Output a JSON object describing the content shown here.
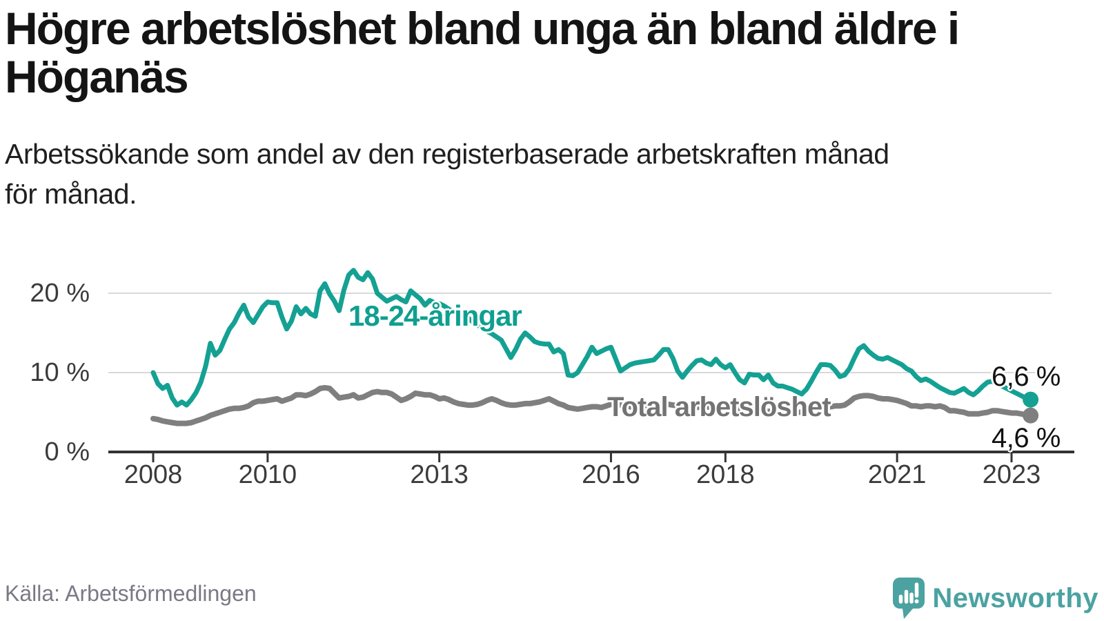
{
  "header": {
    "title_lines": [
      "Högre arbetslöshet bland unga än bland äldre i",
      "Höganäs"
    ],
    "subtitle_lines": [
      "Arbetssökande som andel av den registerbaserade arbetskraften månad",
      "för månad."
    ]
  },
  "footer": {
    "source": "Källa: Arbetsförmedlingen",
    "brand": "Newsworthy",
    "brand_color": "#4ba2a1",
    "logo_icon": "speech-bubble-bar-chart"
  },
  "chart_data": {
    "type": "line",
    "title": "Högre arbetslöshet bland unga än bland äldre i Höganäs",
    "subtitle": "Arbetssökande som andel av den registerbaserade arbetskraften månad för månad.",
    "x_unit": "month",
    "x_range": [
      "2008-01",
      "2023-05"
    ],
    "ylim": [
      0,
      23
    ],
    "grid": "horizontal",
    "grid_color": "#d9d9d9",
    "axis_color": "#333333",
    "x_ticks": [
      {
        "label": "2008",
        "year": 2008
      },
      {
        "label": "2010",
        "year": 2010
      },
      {
        "label": "2013",
        "year": 2013
      },
      {
        "label": "2016",
        "year": 2016
      },
      {
        "label": "2018",
        "year": 2018
      },
      {
        "label": "2021",
        "year": 2021
      },
      {
        "label": "2023",
        "year": 2023
      }
    ],
    "y_ticks": [
      {
        "label": "20 %",
        "value": 20
      },
      {
        "label": "10 %",
        "value": 10
      },
      {
        "label": "0 %",
        "value": 0
      }
    ],
    "series": [
      {
        "name": "18-24-åringar",
        "slug": "18-24",
        "color": "#14a193",
        "label": "18-24-åringar",
        "end_label": "6,6 %",
        "end_value": 6.6,
        "values": [
          10.0,
          8.6,
          8.0,
          8.4,
          6.8,
          5.9,
          6.3,
          5.9,
          6.6,
          7.5,
          8.8,
          10.8,
          13.7,
          12.2,
          12.8,
          14.2,
          15.5,
          16.3,
          17.5,
          18.5,
          17.0,
          16.3,
          17.3,
          18.3,
          18.9,
          18.8,
          18.8,
          17.0,
          15.5,
          16.5,
          18.3,
          17.4,
          18.1,
          17.4,
          17.1,
          20.3,
          21.2,
          19.9,
          19.0,
          17.8,
          20.4,
          22.3,
          22.9,
          22.0,
          21.7,
          22.6,
          21.8,
          20.0,
          19.5,
          19.0,
          19.3,
          19.6,
          19.2,
          18.9,
          20.3,
          19.8,
          19.3,
          18.5,
          19.1,
          18.8,
          18.7,
          18.4,
          18.0,
          17.6,
          17.2,
          16.8,
          16.9,
          16.4,
          16.0,
          15.6,
          15.2,
          14.9,
          14.5,
          14.1,
          13.0,
          11.9,
          12.9,
          14.2,
          15.0,
          14.5,
          13.9,
          13.7,
          13.6,
          13.6,
          12.6,
          12.9,
          12.4,
          9.7,
          9.6,
          10.0,
          11.0,
          12.0,
          13.2,
          12.4,
          12.7,
          13.0,
          13.2,
          11.7,
          10.2,
          10.6,
          11.0,
          11.2,
          11.3,
          11.4,
          11.5,
          11.6,
          12.2,
          12.9,
          12.9,
          11.8,
          10.2,
          9.4,
          10.2,
          10.9,
          11.5,
          11.6,
          11.2,
          11.0,
          11.7,
          11.0,
          10.6,
          11.0,
          10.0,
          9.1,
          8.7,
          9.8,
          9.7,
          9.7,
          9.1,
          9.7,
          8.7,
          8.3,
          8.3,
          8.1,
          7.9,
          7.6,
          7.3,
          7.9,
          8.9,
          10.0,
          11.0,
          11.0,
          10.9,
          10.3,
          9.5,
          9.7,
          10.5,
          11.8,
          13.0,
          13.4,
          12.7,
          12.2,
          11.8,
          11.7,
          11.9,
          11.6,
          11.3,
          11.0,
          10.5,
          10.2,
          9.5,
          9.0,
          9.2,
          8.9,
          8.5,
          8.1,
          7.8,
          7.5,
          7.4,
          7.7,
          8.0,
          7.5,
          7.2,
          7.7,
          8.3,
          8.8,
          8.9,
          8.6,
          8.3,
          8.0,
          7.7,
          7.4,
          7.1,
          6.8,
          6.6
        ]
      },
      {
        "name": "Total arbetslöshet",
        "slug": "total",
        "color": "#7f7f7f",
        "label": "Total arbetslöshet",
        "end_label": "4,6 %",
        "end_value": 4.6,
        "values": [
          4.2,
          4.1,
          3.9,
          3.8,
          3.7,
          3.6,
          3.6,
          3.6,
          3.7,
          3.9,
          4.1,
          4.3,
          4.6,
          4.8,
          5.0,
          5.2,
          5.4,
          5.5,
          5.5,
          5.6,
          5.8,
          6.2,
          6.4,
          6.4,
          6.5,
          6.6,
          6.7,
          6.4,
          6.6,
          6.8,
          7.2,
          7.2,
          7.1,
          7.3,
          7.6,
          8.0,
          8.1,
          8.0,
          7.4,
          6.8,
          6.9,
          7.0,
          7.2,
          6.8,
          6.9,
          7.2,
          7.5,
          7.6,
          7.5,
          7.5,
          7.3,
          6.9,
          6.5,
          6.7,
          7.0,
          7.4,
          7.3,
          7.2,
          7.2,
          7.0,
          6.7,
          6.8,
          6.6,
          6.3,
          6.1,
          6.0,
          5.9,
          5.9,
          6.0,
          6.2,
          6.5,
          6.7,
          6.5,
          6.2,
          6.0,
          5.9,
          5.9,
          6.0,
          6.1,
          6.1,
          6.2,
          6.3,
          6.5,
          6.7,
          6.4,
          6.1,
          5.9,
          5.6,
          5.5,
          5.4,
          5.5,
          5.6,
          5.7,
          5.7,
          5.6,
          5.8,
          6.0,
          6.0,
          5.9,
          5.8,
          5.7,
          5.6,
          5.7,
          5.8,
          5.8,
          5.8,
          5.9,
          6.0,
          6.0,
          5.9,
          5.8,
          5.6,
          5.5,
          5.5,
          5.6,
          5.7,
          5.7,
          5.6,
          5.7,
          5.8,
          5.7,
          5.6,
          5.4,
          5.2,
          5.1,
          5.2,
          5.3,
          5.3,
          5.2,
          5.1,
          5.2,
          5.3,
          5.3,
          5.2,
          5.1,
          5.0,
          5.0,
          5.2,
          5.4,
          5.5,
          5.5,
          5.6,
          5.7,
          5.8,
          5.8,
          5.9,
          6.3,
          6.8,
          7.0,
          7.1,
          7.1,
          7.0,
          6.8,
          6.7,
          6.7,
          6.6,
          6.5,
          6.3,
          6.1,
          5.8,
          5.8,
          5.7,
          5.8,
          5.8,
          5.7,
          5.8,
          5.6,
          5.2,
          5.2,
          5.1,
          5.0,
          4.8,
          4.8,
          4.8,
          4.9,
          5.0,
          5.2,
          5.2,
          5.1,
          5.0,
          4.9,
          4.9,
          4.8,
          4.7,
          4.6
        ]
      }
    ]
  }
}
